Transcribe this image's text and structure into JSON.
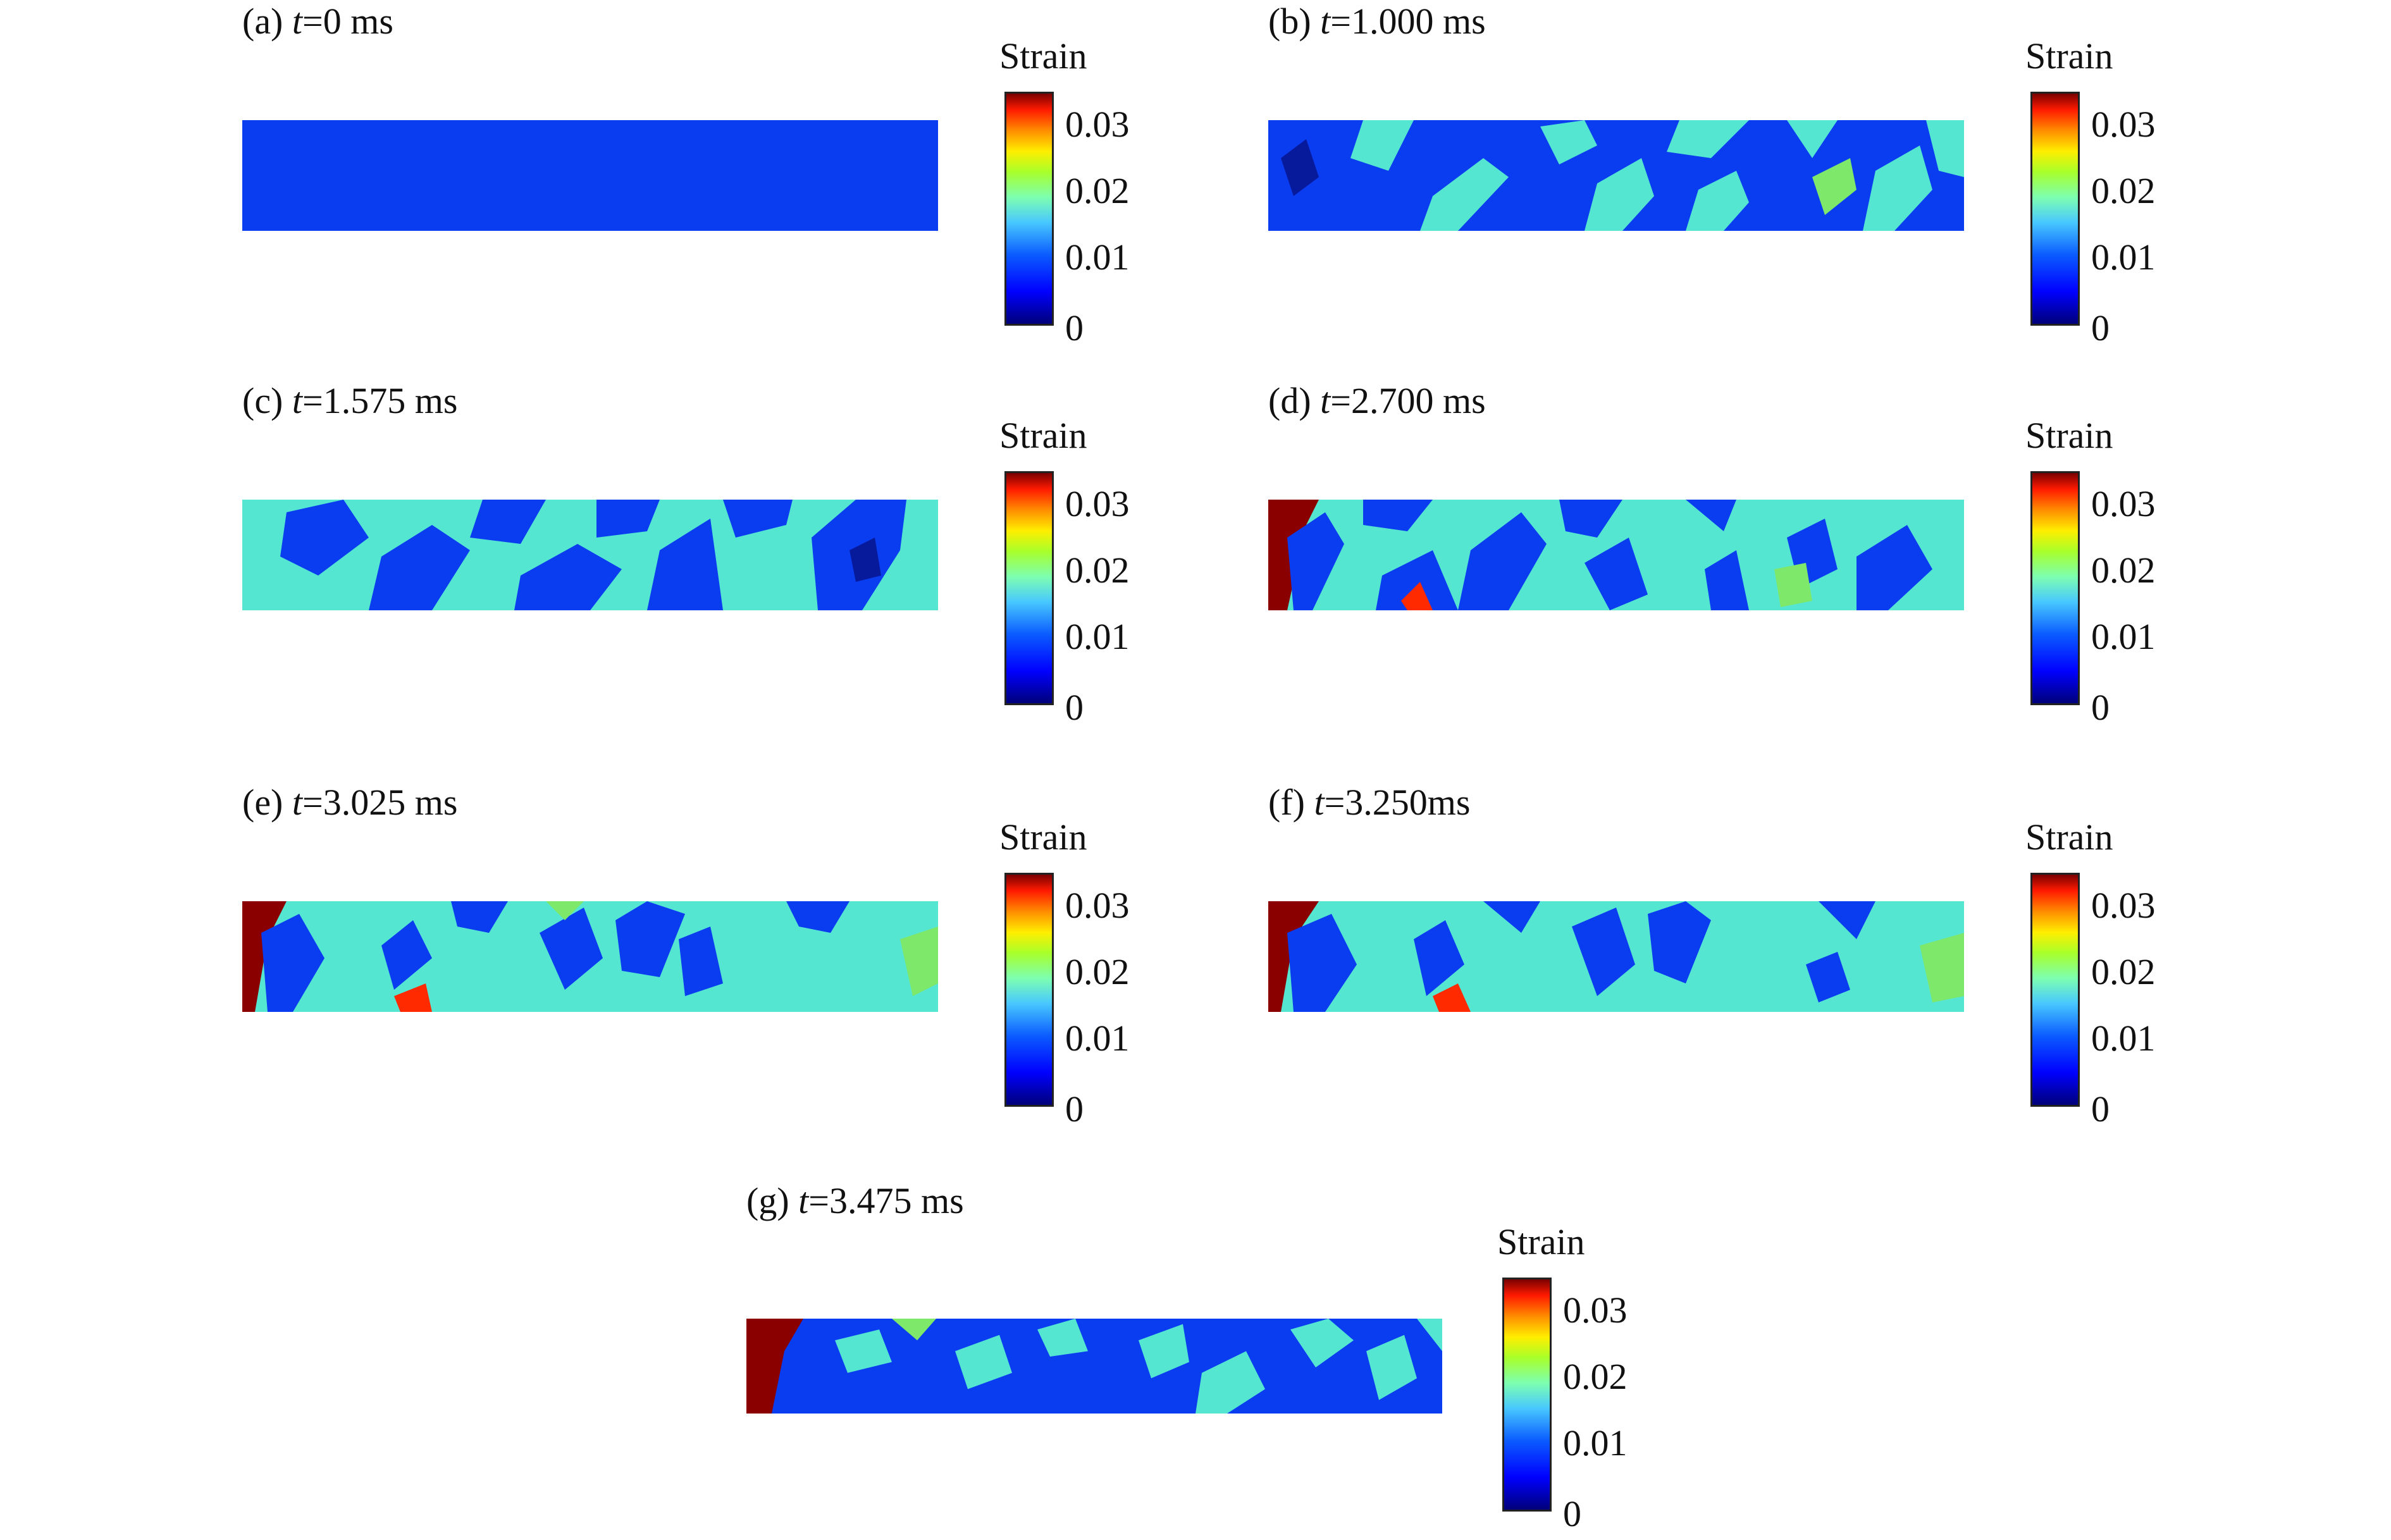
{
  "legend_title": "Strain",
  "legend_ticks": [
    "0.03",
    "0.02",
    "0.01",
    "0"
  ],
  "panels": [
    {
      "label": "(a) ",
      "tvar": "t",
      "time": "=0 ms"
    },
    {
      "label": "(b) ",
      "tvar": "t",
      "time": "=1.000 ms"
    },
    {
      "label": "(c) ",
      "tvar": "t",
      "time": "=1.575 ms"
    },
    {
      "label": "(d) ",
      "tvar": "t",
      "time": "=2.700 ms"
    },
    {
      "label": "(e) ",
      "tvar": "t",
      "time": "=3.025 ms"
    },
    {
      "label": "(f) ",
      "tvar": "t",
      "time": "=3.250ms"
    },
    {
      "label": "(g) ",
      "tvar": "t",
      "time": "=3.475 ms"
    }
  ],
  "colors": {
    "blue": "#0a3cf0",
    "cyan": "#55e6d2",
    "green": "#7ee86a",
    "dark_blue": "#071a9c",
    "red": "#ff2a00",
    "dark_red": "#8a0000"
  }
}
